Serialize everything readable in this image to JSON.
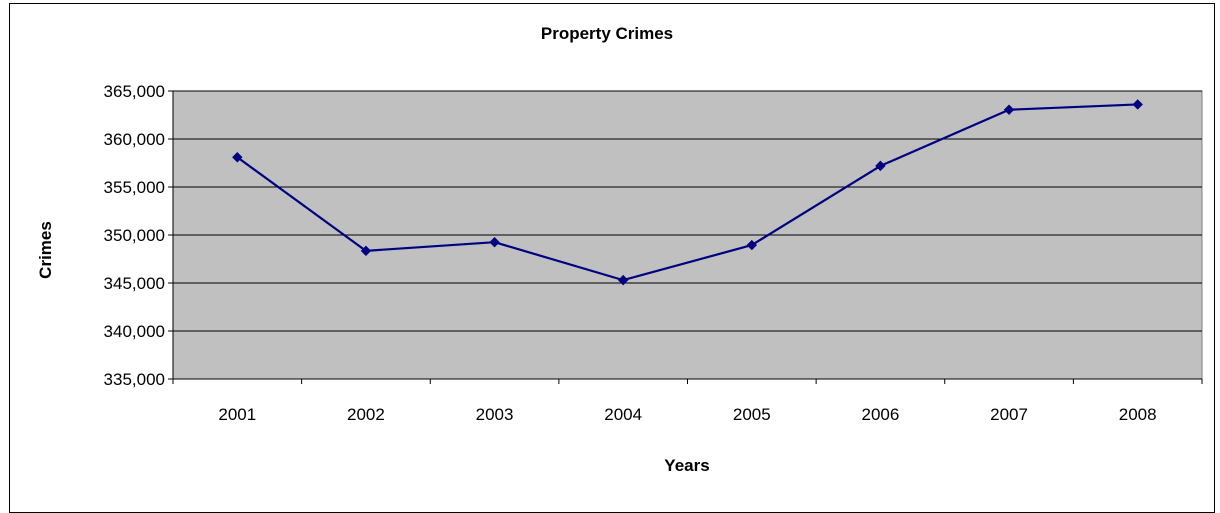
{
  "chart_data": {
    "type": "line",
    "title": "Property Crimes",
    "xlabel": "Years",
    "ylabel": "Crimes",
    "categories": [
      "2001",
      "2002",
      "2003",
      "2004",
      "2005",
      "2006",
      "2007",
      "2008"
    ],
    "series": [
      {
        "values": [
          358100,
          348350,
          349250,
          345300,
          348950,
          357200,
          363050,
          363600
        ],
        "color": "#000080"
      }
    ],
    "ylim": [
      335000,
      365000
    ],
    "yticks": [
      335000,
      340000,
      345000,
      350000,
      355000,
      360000,
      365000
    ],
    "ytick_labels": [
      "335,000",
      "340,000",
      "345,000",
      "350,000",
      "355,000",
      "360,000",
      "365,000"
    ],
    "grid": true,
    "legend": "none",
    "plot_background": "#C0C0C0",
    "gridline_color": "#000000",
    "marker": "diamond"
  }
}
